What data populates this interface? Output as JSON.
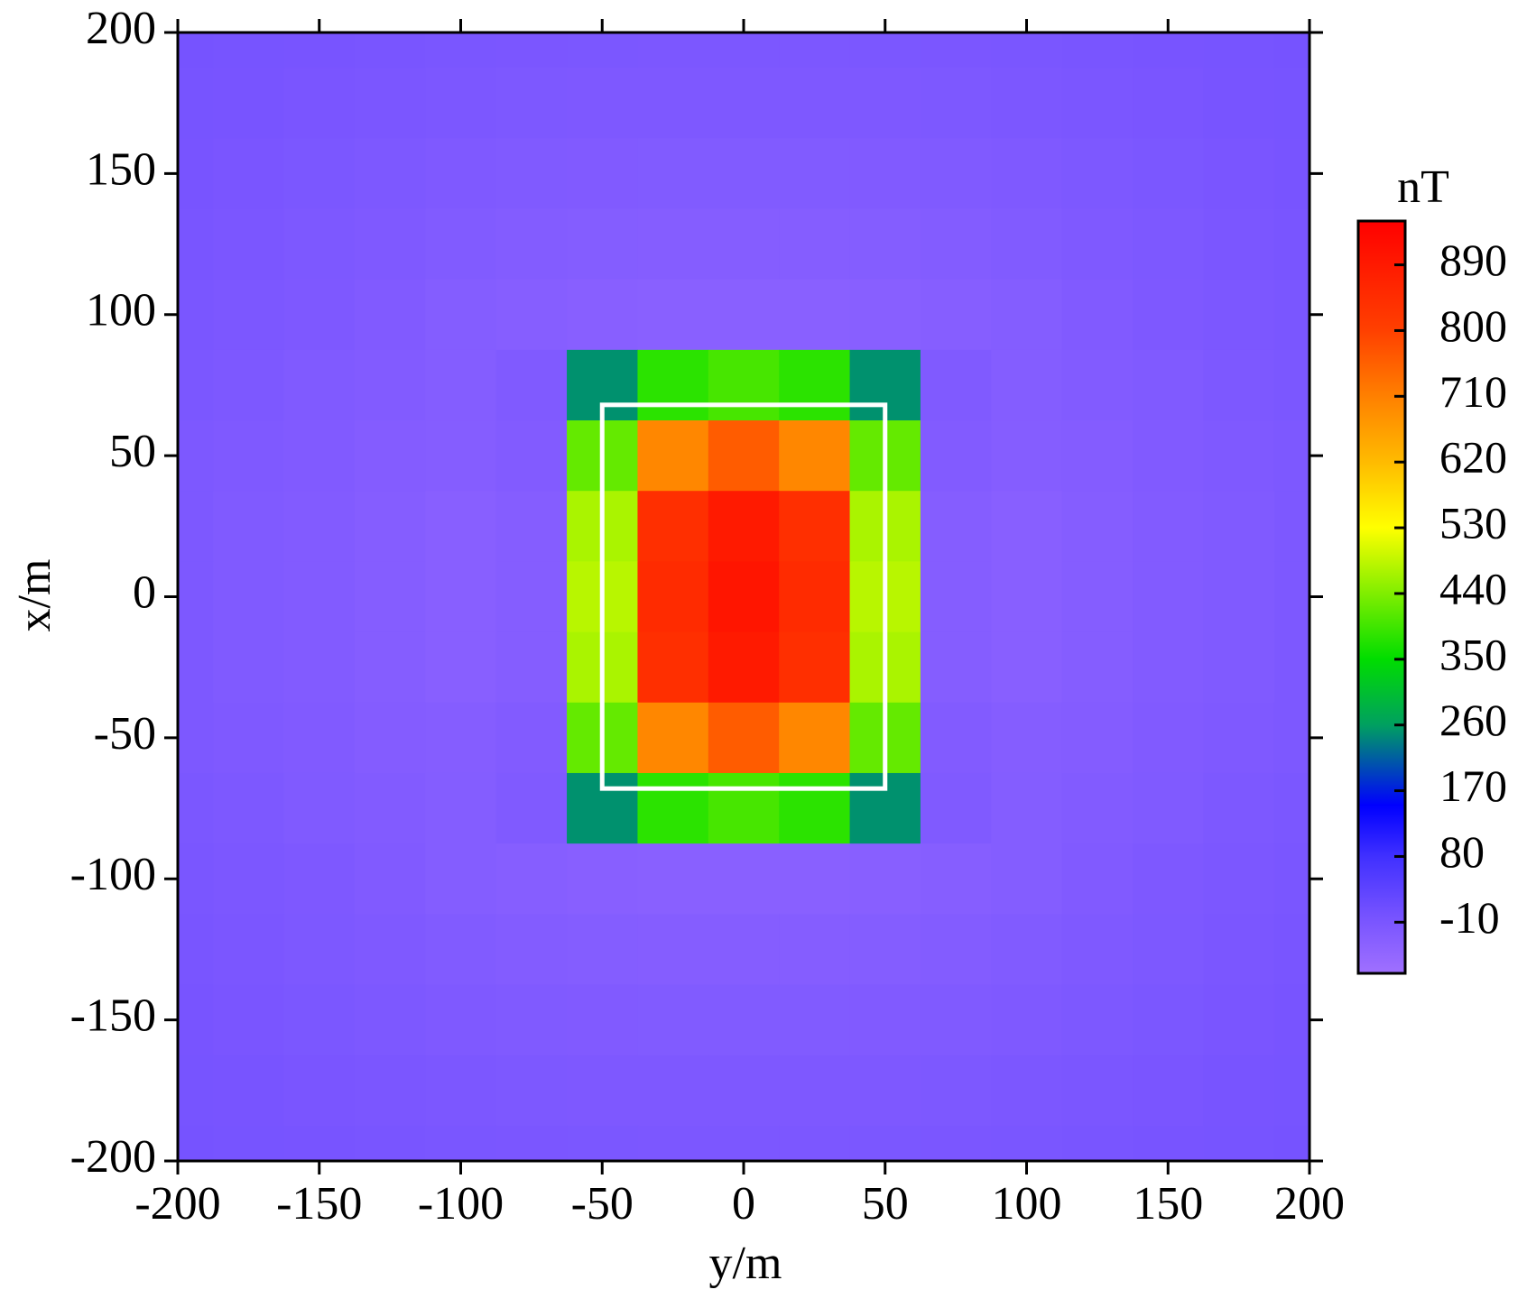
{
  "chart_data": {
    "type": "heatmap",
    "xlabel": "y/m",
    "ylabel": "x/m",
    "xlim": [
      -200,
      200
    ],
    "ylim": [
      -200,
      200
    ],
    "xticks": [
      -200,
      -150,
      -100,
      -50,
      0,
      50,
      100,
      150,
      200
    ],
    "yticks": [
      -200,
      -150,
      -100,
      -50,
      0,
      50,
      100,
      150,
      200
    ],
    "x": [
      -200,
      -175,
      -150,
      -125,
      -100,
      -75,
      -50,
      -25,
      0,
      25,
      50,
      75,
      100,
      125,
      150,
      175,
      200
    ],
    "y": [
      200,
      175,
      150,
      125,
      100,
      75,
      50,
      25,
      0,
      -25,
      -50,
      -75,
      -100,
      -125,
      -150,
      -175,
      -200
    ],
    "z": [
      [
        -2,
        -4,
        -6,
        -8,
        -10,
        -11,
        -12,
        -13,
        -13,
        -13,
        -12,
        -11,
        -10,
        -8,
        -6,
        -4,
        -2
      ],
      [
        -4,
        -6,
        -9,
        -11,
        -13,
        -15,
        -16,
        -17,
        -17,
        -17,
        -16,
        -15,
        -13,
        -11,
        -9,
        -6,
        -4
      ],
      [
        -6,
        -9,
        -12,
        -15,
        -18,
        -20,
        -22,
        -23,
        -23,
        -23,
        -22,
        -20,
        -18,
        -15,
        -12,
        -9,
        -6
      ],
      [
        -8,
        -11,
        -15,
        -19,
        -23,
        -26,
        -28,
        -30,
        -30,
        -30,
        -28,
        -26,
        -23,
        -19,
        -15,
        -11,
        -8
      ],
      [
        -10,
        -13,
        -17,
        -22,
        -28,
        -32,
        -35,
        -38,
        -38,
        -38,
        -35,
        -32,
        -28,
        -22,
        -17,
        -13,
        -10
      ],
      [
        -12,
        -15,
        -20,
        -25,
        -28,
        -20,
        250,
        380,
        400,
        380,
        250,
        -20,
        -28,
        -25,
        -20,
        -15,
        -12
      ],
      [
        -15,
        -18,
        -22,
        -27,
        -30,
        -25,
        420,
        700,
        760,
        700,
        420,
        -25,
        -30,
        -27,
        -22,
        -18,
        -15
      ],
      [
        -15,
        -20,
        -25,
        -30,
        -35,
        -30,
        470,
        840,
        890,
        840,
        470,
        -30,
        -35,
        -30,
        -25,
        -20,
        -15
      ],
      [
        -15,
        -20,
        -25,
        -30,
        -35,
        -30,
        480,
        850,
        900,
        850,
        480,
        -30,
        -35,
        -30,
        -25,
        -20,
        -15
      ],
      [
        -15,
        -20,
        -25,
        -30,
        -35,
        -30,
        470,
        840,
        890,
        840,
        470,
        -30,
        -35,
        -30,
        -25,
        -20,
        -15
      ],
      [
        -15,
        -18,
        -22,
        -27,
        -30,
        -25,
        420,
        700,
        760,
        700,
        420,
        -25,
        -30,
        -27,
        -22,
        -18,
        -15
      ],
      [
        -12,
        -15,
        -20,
        -25,
        -28,
        -20,
        250,
        380,
        400,
        380,
        250,
        -20,
        -28,
        -25,
        -20,
        -15,
        -12
      ],
      [
        -10,
        -13,
        -17,
        -22,
        -28,
        -32,
        -35,
        -38,
        -38,
        -38,
        -35,
        -32,
        -28,
        -22,
        -17,
        -13,
        -10
      ],
      [
        -8,
        -11,
        -15,
        -19,
        -23,
        -26,
        -28,
        -30,
        -30,
        -30,
        -28,
        -26,
        -23,
        -19,
        -15,
        -11,
        -8
      ],
      [
        -6,
        -9,
        -12,
        -15,
        -18,
        -20,
        -22,
        -23,
        -23,
        -23,
        -22,
        -20,
        -18,
        -15,
        -12,
        -9,
        -6
      ],
      [
        -4,
        -6,
        -9,
        -11,
        -13,
        -15,
        -16,
        -17,
        -17,
        -17,
        -16,
        -15,
        -13,
        -11,
        -9,
        -6,
        -4
      ],
      [
        -2,
        -4,
        -6,
        -8,
        -10,
        -11,
        -12,
        -13,
        -13,
        -13,
        -12,
        -11,
        -10,
        -8,
        -6,
        -4,
        -2
      ]
    ],
    "outline": {
      "x": [
        -50,
        50
      ],
      "y": [
        -68,
        68
      ],
      "color": "#ffffff"
    },
    "colorbar_title": "nT",
    "clim": [
      -80,
      950
    ],
    "cticks": [
      -10,
      80,
      170,
      260,
      350,
      440,
      530,
      620,
      710,
      800,
      890
    ],
    "colormap": [
      {
        "value": -80,
        "color": "#a070ff"
      },
      {
        "value": 0,
        "color": "#7552ff"
      },
      {
        "value": 80,
        "color": "#4030ff"
      },
      {
        "value": 150,
        "color": "#0000ff"
      },
      {
        "value": 260,
        "color": "#00a060"
      },
      {
        "value": 350,
        "color": "#00dd00"
      },
      {
        "value": 440,
        "color": "#80ee00"
      },
      {
        "value": 530,
        "color": "#ffff00"
      },
      {
        "value": 620,
        "color": "#ffbb00"
      },
      {
        "value": 710,
        "color": "#ff8000"
      },
      {
        "value": 800,
        "color": "#ff4000"
      },
      {
        "value": 950,
        "color": "#ff0000"
      }
    ]
  }
}
